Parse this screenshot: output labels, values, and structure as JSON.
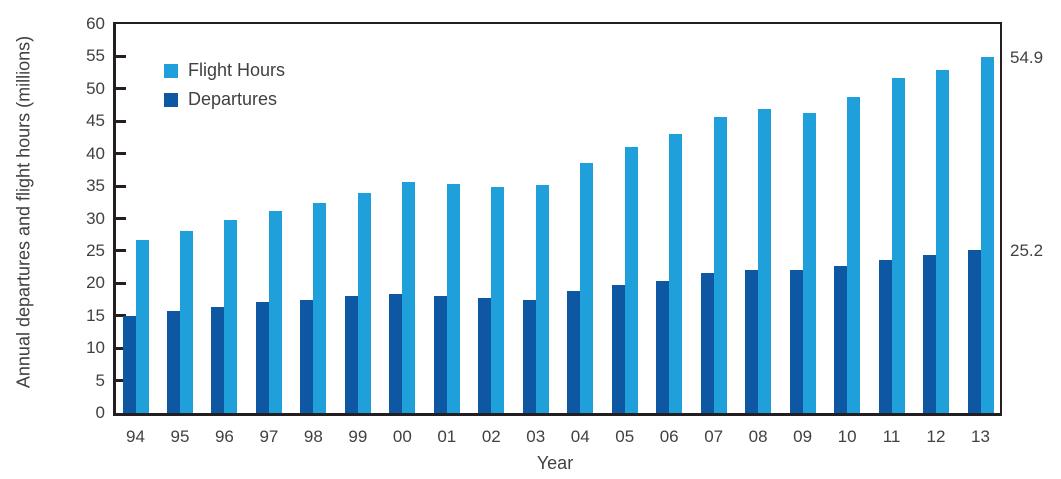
{
  "figure": {
    "y_axis_title": "Annual departures and flight hours (millions)",
    "x_axis_title": "Year"
  },
  "legend": {
    "items": [
      {
        "label": "Flight Hours",
        "color": "#1fa0db"
      },
      {
        "label": "Departures",
        "color": "#0e57a2"
      }
    ]
  },
  "annotations": {
    "flight_hours_final": "54.9",
    "departures_final": "25.2"
  },
  "colors": {
    "flight_hours": "#1fa0db",
    "departures": "#0e57a2",
    "axis": "#231f20",
    "text": "#414042"
  },
  "chart_data": {
    "type": "bar",
    "title": "",
    "xlabel": "Year",
    "ylabel": "Annual departures and flight hours (millions)",
    "categories": [
      "94",
      "95",
      "96",
      "97",
      "98",
      "99",
      "00",
      "01",
      "02",
      "03",
      "04",
      "05",
      "06",
      "07",
      "08",
      "09",
      "10",
      "11",
      "12",
      "13"
    ],
    "series": [
      {
        "name": "Flight Hours",
        "color": "#1fa0db",
        "values": [
          26.7,
          28.1,
          29.8,
          31.2,
          32.4,
          34.0,
          35.7,
          35.4,
          34.8,
          35.1,
          38.6,
          41.1,
          43.1,
          45.6,
          46.9,
          46.3,
          48.8,
          51.7,
          52.9,
          54.9
        ]
      },
      {
        "name": "Departures",
        "color": "#0e57a2",
        "values": [
          15.0,
          15.7,
          16.3,
          17.1,
          17.4,
          18.0,
          18.4,
          18.0,
          17.8,
          17.4,
          18.8,
          19.7,
          20.3,
          21.6,
          22.0,
          22.0,
          22.7,
          23.6,
          24.4,
          25.2
        ]
      }
    ],
    "group_order": [
      "Departures",
      "Flight Hours"
    ],
    "ylim": [
      0,
      60
    ],
    "ytick_step": 5,
    "grid": false,
    "legend_position": "inside-top-left",
    "end_labels": [
      {
        "series": "Flight Hours",
        "text": "54.9"
      },
      {
        "series": "Departures",
        "text": "25.2"
      }
    ]
  }
}
